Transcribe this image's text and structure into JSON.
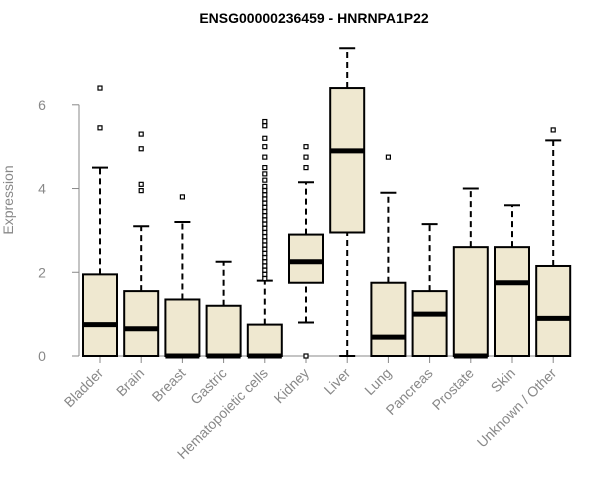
{
  "chart_data": {
    "type": "box",
    "title": "ENSG00000236459 - HNRNPA1P22",
    "xlabel": "",
    "ylabel": "Expression",
    "ylim": [
      0,
      7.5
    ],
    "yticks": [
      0,
      2,
      4,
      6
    ],
    "grid": false,
    "box_fill": "#efe8d0",
    "categories": [
      "Bladder",
      "Brain",
      "Breast",
      "Gastric",
      "Hematopoietic cells",
      "Kidney",
      "Liver",
      "Lung",
      "Pancreas",
      "Prostate",
      "Skin",
      "Unknown / Other"
    ],
    "boxes": [
      {
        "whisker_low": 0,
        "q1": 0,
        "median": 0.75,
        "q3": 1.95,
        "whisker_high": 4.5,
        "outliers": [
          5.45,
          6.4
        ]
      },
      {
        "whisker_low": 0,
        "q1": 0,
        "median": 0.65,
        "q3": 1.55,
        "whisker_high": 3.1,
        "outliers": [
          3.95,
          4.1,
          4.95,
          5.3
        ]
      },
      {
        "whisker_low": 0,
        "q1": 0,
        "median": 0,
        "q3": 1.35,
        "whisker_high": 3.2,
        "outliers": [
          3.8
        ]
      },
      {
        "whisker_low": 0,
        "q1": 0,
        "median": 0,
        "q3": 1.2,
        "whisker_high": 2.25,
        "outliers": []
      },
      {
        "whisker_low": 0,
        "q1": 0,
        "median": 0,
        "q3": 0.75,
        "whisker_high": 1.8,
        "outliers": [
          1.85,
          1.95,
          2.05,
          2.15,
          2.25,
          2.35,
          2.45,
          2.55,
          2.65,
          2.75,
          2.85,
          2.95,
          3.05,
          3.15,
          3.25,
          3.35,
          3.45,
          3.55,
          3.65,
          3.75,
          3.85,
          3.95,
          4.05,
          4.2,
          4.35,
          4.5,
          4.75,
          5.0,
          5.2,
          5.5,
          5.6
        ]
      },
      {
        "whisker_low": 0.8,
        "q1": 1.75,
        "median": 2.25,
        "q3": 2.9,
        "whisker_high": 4.15,
        "outliers": [
          0,
          4.5,
          4.75,
          5.0
        ]
      },
      {
        "whisker_low": 0,
        "q1": 2.95,
        "median": 4.9,
        "q3": 6.4,
        "whisker_high": 7.35,
        "outliers": []
      },
      {
        "whisker_low": 0,
        "q1": 0,
        "median": 0.45,
        "q3": 1.75,
        "whisker_high": 3.9,
        "outliers": [
          4.75
        ]
      },
      {
        "whisker_low": 0,
        "q1": 0,
        "median": 1.0,
        "q3": 1.55,
        "whisker_high": 3.15,
        "outliers": []
      },
      {
        "whisker_low": 0,
        "q1": 0,
        "median": 0,
        "q3": 2.6,
        "whisker_high": 4.0,
        "outliers": []
      },
      {
        "whisker_low": 0,
        "q1": 0,
        "median": 1.75,
        "q3": 2.6,
        "whisker_high": 3.6,
        "outliers": []
      },
      {
        "whisker_low": 0,
        "q1": 0,
        "median": 0.9,
        "q3": 2.15,
        "whisker_high": 5.15,
        "outliers": [
          5.4
        ]
      }
    ]
  }
}
